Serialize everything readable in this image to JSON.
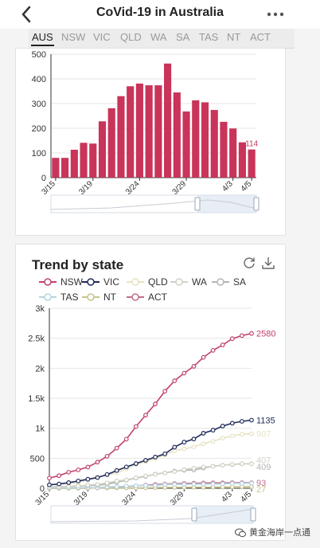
{
  "header": {
    "title": "CoVid-19 in Australia",
    "back_icon": "chevron-left-icon",
    "more_icon": "more-horizontal-icon"
  },
  "tabs": [
    {
      "label": "AUS",
      "active": true
    },
    {
      "label": "NSW",
      "active": false
    },
    {
      "label": "VIC",
      "active": false
    },
    {
      "label": "QLD",
      "active": false
    },
    {
      "label": "WA",
      "active": false
    },
    {
      "label": "SA",
      "active": false
    },
    {
      "label": "TAS",
      "active": false
    },
    {
      "label": "NT",
      "active": false
    },
    {
      "label": "ACT",
      "active": false
    }
  ],
  "colors": {
    "bar": "#c9345a",
    "NSW": "#c0426a",
    "VIC": "#1f2a5a",
    "QLD": "#e6e3c3",
    "WA": "#cfd3c4",
    "SA": "#b4b4b4",
    "TAS": "#b5d3e0",
    "NT": "#c9c38d",
    "ACT": "#c06f8a"
  },
  "chart_data": [
    {
      "type": "bar",
      "title": "",
      "categories": [
        "3/15",
        "3/16",
        "3/17",
        "3/18",
        "3/19",
        "3/20",
        "3/21",
        "3/22",
        "3/23",
        "3/24",
        "3/25",
        "3/26",
        "3/27",
        "3/28",
        "3/29",
        "3/30",
        "3/31",
        "4/1",
        "4/2",
        "4/3",
        "4/4",
        "4/5"
      ],
      "x_tick_labels": [
        "3/15",
        "3/19",
        "3/24",
        "3/29",
        "4/3",
        "4/5"
      ],
      "values": [
        80,
        80,
        113,
        141,
        138,
        228,
        281,
        330,
        370,
        381,
        374,
        374,
        462,
        345,
        268,
        313,
        305,
        274,
        226,
        199,
        143,
        114
      ],
      "data_labels": {
        "4/5": "114"
      },
      "ylim": [
        0,
        500
      ],
      "yticks": [
        0,
        100,
        200,
        300,
        400,
        500
      ],
      "ytick_labels": [
        "0",
        "100",
        "200",
        "300",
        "400",
        "500"
      ],
      "grid": true,
      "xlabel": "",
      "ylabel": ""
    },
    {
      "type": "line",
      "title": "Trend by state",
      "x": [
        "3/15",
        "3/16",
        "3/17",
        "3/18",
        "3/19",
        "3/20",
        "3/21",
        "3/22",
        "3/23",
        "3/24",
        "3/25",
        "3/26",
        "3/27",
        "3/28",
        "3/29",
        "3/30",
        "3/31",
        "4/1",
        "4/2",
        "4/3",
        "4/4",
        "4/5"
      ],
      "x_tick_labels": [
        "3/15",
        "3/19",
        "3/24",
        "3/29",
        "4/3",
        "4/5"
      ],
      "ylim": [
        0,
        3000
      ],
      "yticks": [
        0,
        500,
        1000,
        1500,
        2000,
        2500,
        3000
      ],
      "ytick_labels": [
        "0",
        "500",
        "1k",
        "1.5k",
        "2k",
        "2.5k",
        "3k"
      ],
      "grid": true,
      "legend_position": "top",
      "series": [
        {
          "name": "NSW",
          "values": [
            171,
            210,
            267,
            307,
            353,
            436,
            533,
            669,
            818,
            1029,
            1219,
            1405,
            1617,
            1791,
            1918,
            2032,
            2182,
            2298,
            2389,
            2493,
            2544,
            2580
          ],
          "end_label": "2580"
        },
        {
          "name": "VIC",
          "values": [
            57,
            71,
            94,
            121,
            150,
            178,
            229,
            296,
            355,
            411,
            466,
            520,
            574,
            685,
            769,
            821,
            917,
            968,
            1036,
            1085,
            1115,
            1135
          ],
          "end_label": "1135"
        },
        {
          "name": "QLD",
          "values": [
            61,
            68,
            78,
            94,
            144,
            184,
            221,
            259,
            319,
            397,
            443,
            493,
            555,
            625,
            656,
            689,
            743,
            781,
            835,
            873,
            900,
            907
          ],
          "end_label": "907"
        },
        {
          "name": "WA",
          "values": [
            18,
            28,
            31,
            35,
            52,
            64,
            90,
            120,
            140,
            175,
            205,
            231,
            255,
            278,
            311,
            335,
            355,
            364,
            384,
            400,
            408,
            407
          ],
          "end_label": "407"
        },
        {
          "name": "SA",
          "values": [
            20,
            29,
            30,
            37,
            42,
            50,
            67,
            100,
            134,
            170,
            197,
            235,
            257,
            287,
            299,
            305,
            337,
            367,
            385,
            396,
            407,
            409
          ],
          "end_label": "409"
        },
        {
          "name": "TAS",
          "values": [
            7,
            7,
            7,
            10,
            10,
            11,
            22,
            28,
            36,
            42,
            47,
            47,
            62,
            65,
            66,
            69,
            69,
            72,
            74,
            80,
            82,
            86
          ],
          "end_label": ""
        },
        {
          "name": "NT",
          "values": [
            1,
            1,
            1,
            1,
            3,
            5,
            5,
            6,
            6,
            6,
            8,
            12,
            14,
            15,
            15,
            17,
            17,
            19,
            20,
            25,
            27,
            27
          ],
          "end_label": "27"
        },
        {
          "name": "ACT",
          "values": [
            1,
            1,
            2,
            2,
            3,
            6,
            9,
            19,
            32,
            39,
            53,
            62,
            71,
            77,
            80,
            84,
            87,
            91,
            91,
            93,
            93,
            93
          ],
          "end_label": "93"
        }
      ],
      "xlabel": "",
      "ylabel": ""
    }
  ],
  "toolbox": {
    "refresh_icon": "refresh-icon",
    "download_icon": "download-icon"
  },
  "watermark": {
    "text": "黄金海岸一点通",
    "icon": "wechat-icon"
  }
}
